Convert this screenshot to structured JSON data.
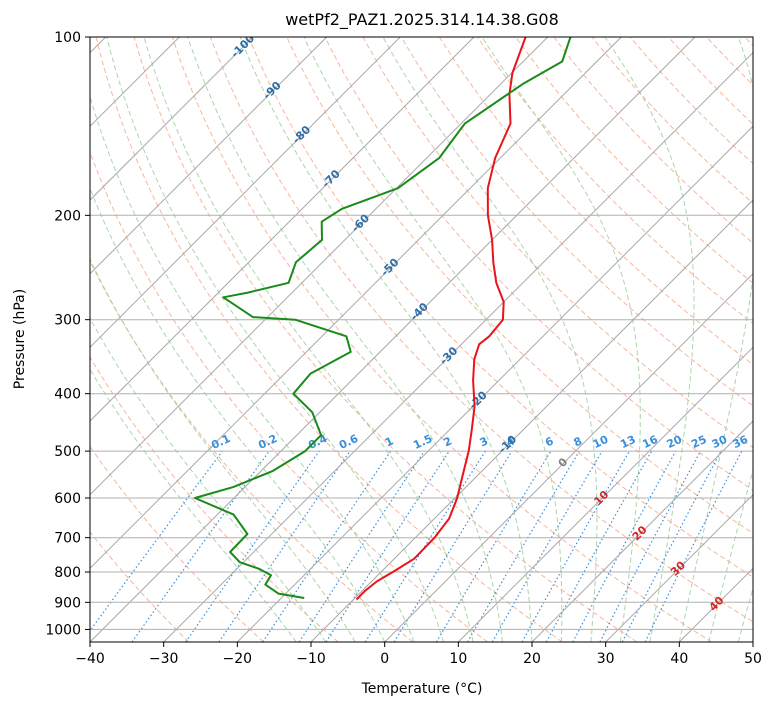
{
  "chart_data": {
    "type": "skew-t",
    "title": "wetPf2_PAZ1.2025.314.14.38.G08",
    "xlabel": "Temperature (°C)",
    "ylabel": "Pressure (hPa)",
    "xlim": [
      -40,
      50
    ],
    "ylim": [
      1050,
      100
    ],
    "y_scale": "log",
    "grid": true,
    "x_ticks": [
      "−40",
      "−30",
      "−20",
      "−10",
      "0",
      "10",
      "20",
      "30",
      "40",
      "50"
    ],
    "x_tick_values": [
      -40,
      -30,
      -20,
      -10,
      0,
      10,
      20,
      30,
      40,
      50
    ],
    "y_ticks": [
      "100",
      "200",
      "300",
      "400",
      "500",
      "600",
      "700",
      "800",
      "900",
      "1000"
    ],
    "y_tick_values": [
      100,
      200,
      300,
      400,
      500,
      600,
      700,
      800,
      900,
      1000
    ],
    "isotherm_labels": [
      "-100",
      "-90",
      "-80",
      "-70",
      "-60",
      "-50",
      "-40",
      "-30",
      "-20",
      "-10",
      "0",
      "10",
      "20",
      "30",
      "40"
    ],
    "isotherm_values": [
      -100,
      -90,
      -80,
      -70,
      -60,
      -50,
      -40,
      -30,
      -20,
      -10,
      0,
      10,
      20,
      30,
      40
    ],
    "mixing_ratio_labels": [
      "0.1",
      "0.2",
      "0.4",
      "0.6",
      "1",
      "1.5",
      "2",
      "3",
      "4",
      "6",
      "8",
      "10",
      "13",
      "16",
      "20",
      "25",
      "30",
      "36"
    ],
    "mixing_ratio_values": [
      0.1,
      0.2,
      0.4,
      0.6,
      1,
      1.5,
      2,
      3,
      4,
      6,
      8,
      10,
      13,
      16,
      20,
      25,
      30,
      36
    ],
    "colors": {
      "temperature": "#e8141a",
      "dewpoint": "#1a8a1a",
      "isotherm": "#a8a8a8",
      "dry_adiabat": "#f4a582",
      "moist_adiabat": "#9bcf9b",
      "mixing_ratio": "#3a8fdc",
      "isotherm_label_cold": "#2c6ea5",
      "isotherm_label_warm": "#d62728",
      "isotherm_label_zero": "#808080"
    },
    "series": [
      {
        "id": "temperature",
        "points": [
          {
            "p": 890,
            "t": -9.6
          },
          {
            "p": 860,
            "t": -9.6
          },
          {
            "p": 830,
            "t": -9.3
          },
          {
            "p": 800,
            "t": -8.4
          },
          {
            "p": 760,
            "t": -7.3
          },
          {
            "p": 700,
            "t": -7.4
          },
          {
            "p": 650,
            "t": -8.0
          },
          {
            "p": 600,
            "t": -9.7
          },
          {
            "p": 550,
            "t": -12.0
          },
          {
            "p": 500,
            "t": -14.5
          },
          {
            "p": 460,
            "t": -17.0
          },
          {
            "p": 420,
            "t": -19.8
          },
          {
            "p": 380,
            "t": -23.5
          },
          {
            "p": 350,
            "t": -26.2
          },
          {
            "p": 330,
            "t": -27.6
          },
          {
            "p": 320,
            "t": -27.3
          },
          {
            "p": 300,
            "t": -27.7
          },
          {
            "p": 280,
            "t": -30.0
          },
          {
            "p": 260,
            "t": -33.6
          },
          {
            "p": 240,
            "t": -36.8
          },
          {
            "p": 220,
            "t": -40.0
          },
          {
            "p": 200,
            "t": -43.9
          },
          {
            "p": 180,
            "t": -47.6
          },
          {
            "p": 160,
            "t": -50.7
          },
          {
            "p": 140,
            "t": -53.3
          },
          {
            "p": 125,
            "t": -57.4
          },
          {
            "p": 115,
            "t": -59.9
          },
          {
            "p": 100,
            "t": -63.0
          }
        ]
      },
      {
        "id": "dewpoint",
        "points": [
          {
            "p": 885,
            "t": -16.9
          },
          {
            "p": 870,
            "t": -21.0
          },
          {
            "p": 840,
            "t": -24.0
          },
          {
            "p": 810,
            "t": -24.5
          },
          {
            "p": 790,
            "t": -27.0
          },
          {
            "p": 770,
            "t": -30.5
          },
          {
            "p": 740,
            "t": -33.2
          },
          {
            "p": 690,
            "t": -33.3
          },
          {
            "p": 640,
            "t": -37.8
          },
          {
            "p": 600,
            "t": -45.3
          },
          {
            "p": 575,
            "t": -41.6
          },
          {
            "p": 540,
            "t": -38.4
          },
          {
            "p": 500,
            "t": -36.7
          },
          {
            "p": 470,
            "t": -36.7
          },
          {
            "p": 430,
            "t": -41.0
          },
          {
            "p": 400,
            "t": -46.1
          },
          {
            "p": 370,
            "t": -46.5
          },
          {
            "p": 340,
            "t": -44.0
          },
          {
            "p": 320,
            "t": -46.7
          },
          {
            "p": 300,
            "t": -55.9
          },
          {
            "p": 297,
            "t": -62.0
          },
          {
            "p": 275,
            "t": -68.7
          },
          {
            "p": 270,
            "t": -66.0
          },
          {
            "p": 260,
            "t": -61.8
          },
          {
            "p": 240,
            "t": -63.6
          },
          {
            "p": 220,
            "t": -63.1
          },
          {
            "p": 205,
            "t": -65.6
          },
          {
            "p": 195,
            "t": -64.6
          },
          {
            "p": 180,
            "t": -59.8
          },
          {
            "p": 160,
            "t": -58.3
          },
          {
            "p": 140,
            "t": -59.5
          },
          {
            "p": 120,
            "t": -57.0
          },
          {
            "p": 110,
            "t": -54.7
          },
          {
            "p": 100,
            "t": -56.9
          }
        ]
      }
    ]
  }
}
